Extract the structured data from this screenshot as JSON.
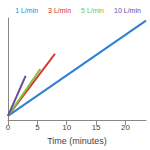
{
  "chart_data": {
    "type": "line",
    "x_label": "Time (minutes)",
    "series": [
      {
        "name": "1 L/min",
        "color": "#2f7fd3",
        "x": [
          0,
          23.5
        ],
        "values": [
          5,
          117
        ]
      },
      {
        "name": "3 L/min",
        "color": "#d8322a",
        "x": [
          0,
          8
        ],
        "values": [
          5,
          78
        ]
      },
      {
        "name": "5 L/min",
        "color": "#7cc242",
        "x": [
          0,
          5.5
        ],
        "values": [
          5,
          60
        ]
      },
      {
        "name": "10 L/min",
        "color": "#6a4c9c",
        "x": [
          0,
          3
        ],
        "values": [
          5,
          52
        ]
      }
    ],
    "xlim": [
      0,
      23.5
    ],
    "xticks": [
      0,
      5,
      10,
      15,
      20
    ],
    "ylim": [
      0,
      120
    ],
    "grid": false,
    "legend": "top",
    "tick_labels": "x"
  }
}
